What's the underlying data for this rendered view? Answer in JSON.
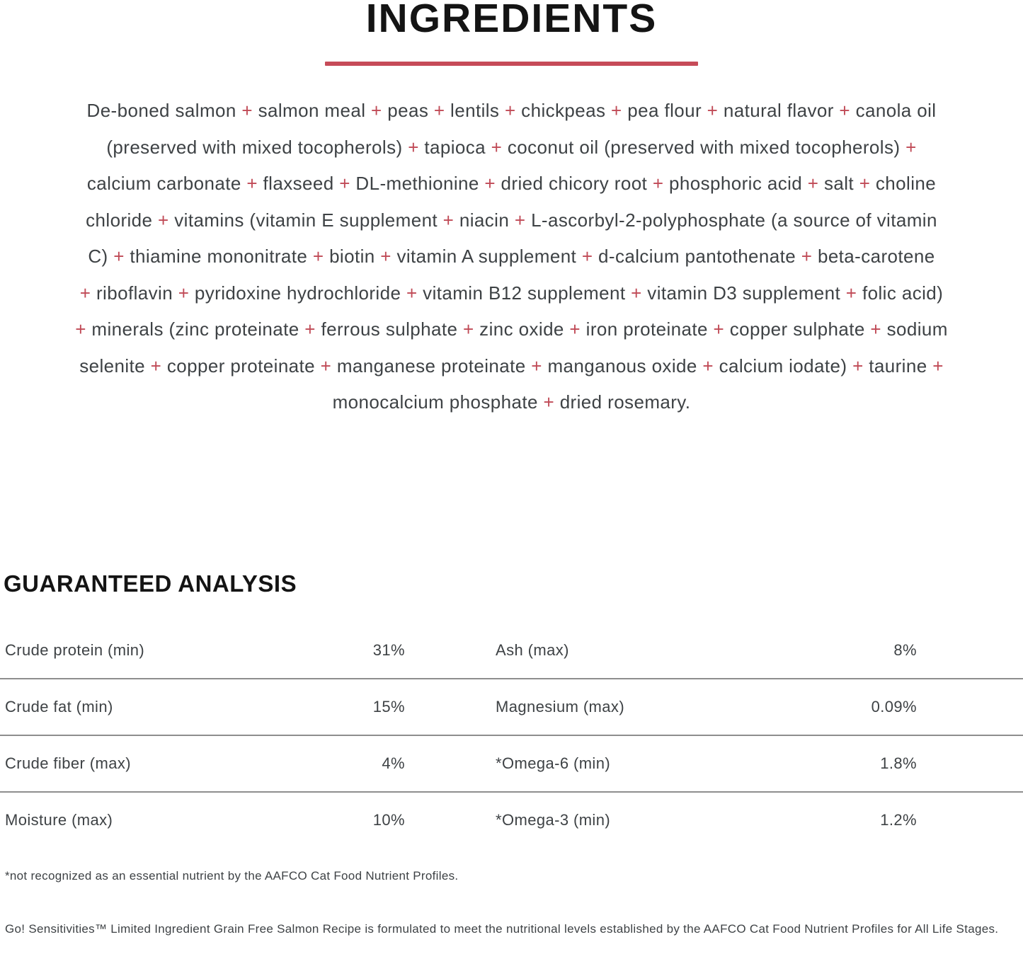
{
  "colors": {
    "accent_red": "#c64b58",
    "plus_red": "#c04a56",
    "heading_black": "#141414",
    "body_gray": "#3e4245",
    "divider_gray": "#8e8e8e"
  },
  "ingredients": {
    "heading": "INGREDIENTS",
    "text": "De-boned salmon + salmon meal + peas + lentils + chickpeas + pea flour + natural flavor + canola oil\n(preserved with mixed tocopherols) + tapioca + coconut oil (preserved with mixed tocopherols) +\ncalcium carbonate + flaxseed + DL-methionine + dried chicory root + phosphoric acid + salt + choline\nchloride + vitamins (vitamin E supplement + niacin + L-ascorbyl-2-polyphosphate (a source of vitamin\nC) + thiamine mononitrate + biotin + vitamin A supplement + d-calcium pantothenate + beta-carotene\n+ riboflavin + pyridoxine hydrochloride + vitamin B12 supplement + vitamin D3 supplement + folic acid)\n+ minerals (zinc proteinate + ferrous sulphate + zinc oxide + iron proteinate + copper sulphate + sodium\nselenite + copper proteinate + manganese proteinate + manganous oxide + calcium iodate) + taurine +\nmonocalcium phosphate + dried rosemary."
  },
  "guaranteed_analysis": {
    "heading": "GUARANTEED ANALYSIS",
    "rows": [
      {
        "left_label": "Crude protein (min)",
        "left_value": "31%",
        "right_label": "Ash (max)",
        "right_value": "8%"
      },
      {
        "left_label": "Crude fat (min)",
        "left_value": "15%",
        "right_label": "Magnesium (max)",
        "right_value": "0.09%"
      },
      {
        "left_label": "Crude fiber (max)",
        "left_value": "4%",
        "right_label": "*Omega-6 (min)",
        "right_value": "1.8%"
      },
      {
        "left_label": "Moisture (max)",
        "left_value": "10%",
        "right_label": "*Omega-3 (min)",
        "right_value": "1.2%"
      }
    ],
    "footnote": "*not recognized as an essential nutrient by the AAFCO Cat Food Nutrient Profiles."
  },
  "disclaimer": "Go! Sensitivities™ Limited Ingredient Grain Free Salmon Recipe is formulated to meet the nutritional levels established by the AAFCO Cat Food Nutrient Profiles for All Life Stages."
}
